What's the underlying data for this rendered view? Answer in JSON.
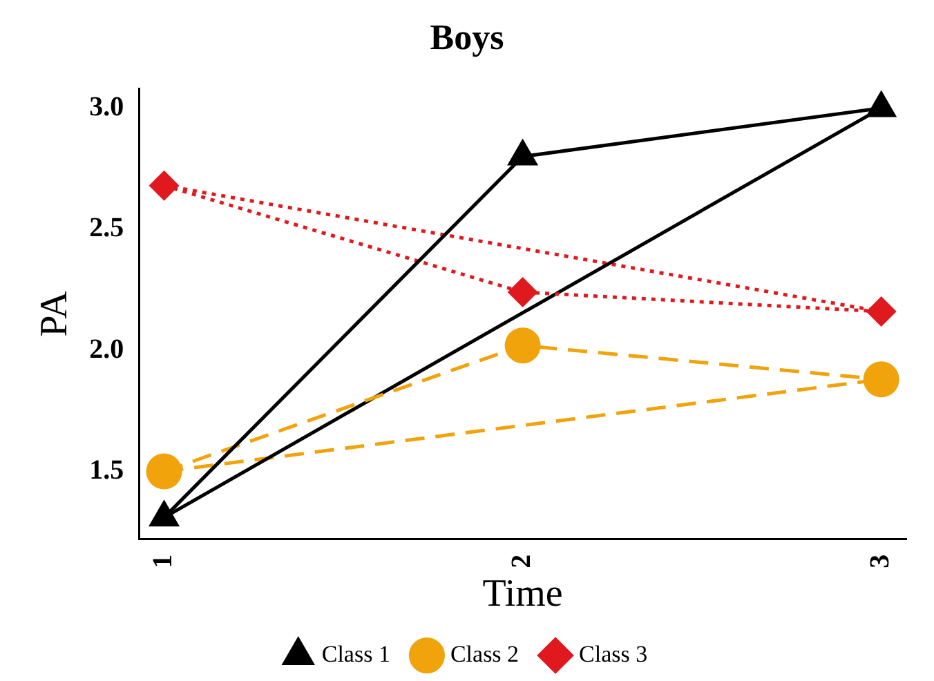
{
  "chart_data": {
    "type": "line",
    "title": "Boys",
    "xlabel": "Time",
    "ylabel": "PA",
    "xlim": [
      0.93,
      3.07
    ],
    "xticks": [
      1,
      2,
      3
    ],
    "ylim": [
      1.22,
      3.08
    ],
    "yticks": [
      1.5,
      {
        "value": 2,
        "label": "2.0"
      },
      2.5,
      {
        "value": 3,
        "label": "3.0"
      }
    ],
    "grid": false,
    "legend": "bottom",
    "series": [
      {
        "name": "Class 1",
        "color": "#000000",
        "marker": "triangle",
        "line_style": "solid",
        "x": [
          1,
          2,
          3
        ],
        "values": [
          1.31,
          2.8,
          3.0
        ]
      },
      {
        "name": "Class 2",
        "color": "#f0a30a",
        "marker": "circle",
        "line_style": "dashed",
        "x": [
          1,
          2,
          3
        ],
        "values": [
          1.5,
          2.02,
          1.88
        ]
      },
      {
        "name": "Class 3",
        "color": "#e0191e",
        "marker": "diamond",
        "line_style": "dotted",
        "x": [
          1,
          2,
          3
        ],
        "values": [
          2.68,
          2.24,
          2.16
        ]
      },
      {
        "color": "#000000",
        "marker": "none",
        "line_style": "solid",
        "x": [
          1,
          3
        ],
        "values": [
          1.31,
          3.0
        ]
      },
      {
        "color": "#f0a30a",
        "marker": "none",
        "line_style": "dashed",
        "x": [
          1,
          3
        ],
        "values": [
          1.5,
          1.88
        ]
      },
      {
        "color": "#e0191e",
        "marker": "none",
        "line_style": "dotted",
        "x": [
          1,
          3
        ],
        "values": [
          2.68,
          2.16
        ]
      }
    ]
  }
}
